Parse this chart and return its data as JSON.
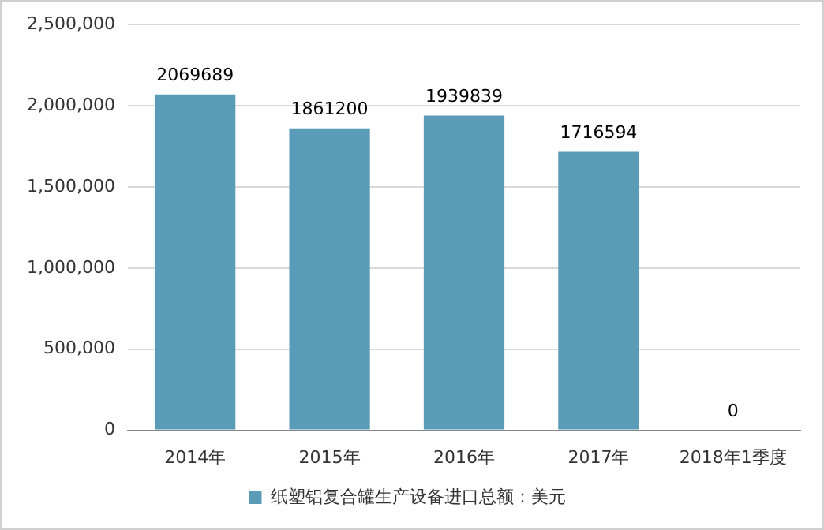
{
  "chart_data": {
    "type": "bar",
    "categories": [
      "2014年",
      "2015年",
      "2016年",
      "2017年",
      "2018年1季度"
    ],
    "series": [
      {
        "name": "纸塑铝复合罐生产设备进口总额：美元",
        "color": "#5a9cb8",
        "values": [
          2069689,
          1861200,
          1939839,
          1716594,
          0
        ]
      }
    ],
    "ylim": [
      0,
      2500000
    ],
    "yticks": [
      {
        "value": 0,
        "label": "0"
      },
      {
        "value": 500000,
        "label": "500,000"
      },
      {
        "value": 1000000,
        "label": "1,000,000"
      },
      {
        "value": 1500000,
        "label": "1,500,000"
      },
      {
        "value": 2000000,
        "label": "2,000,000"
      },
      {
        "value": 2500000,
        "label": "2,500,000"
      }
    ],
    "grid": "y",
    "legend": "bottom",
    "data_labels": true
  }
}
